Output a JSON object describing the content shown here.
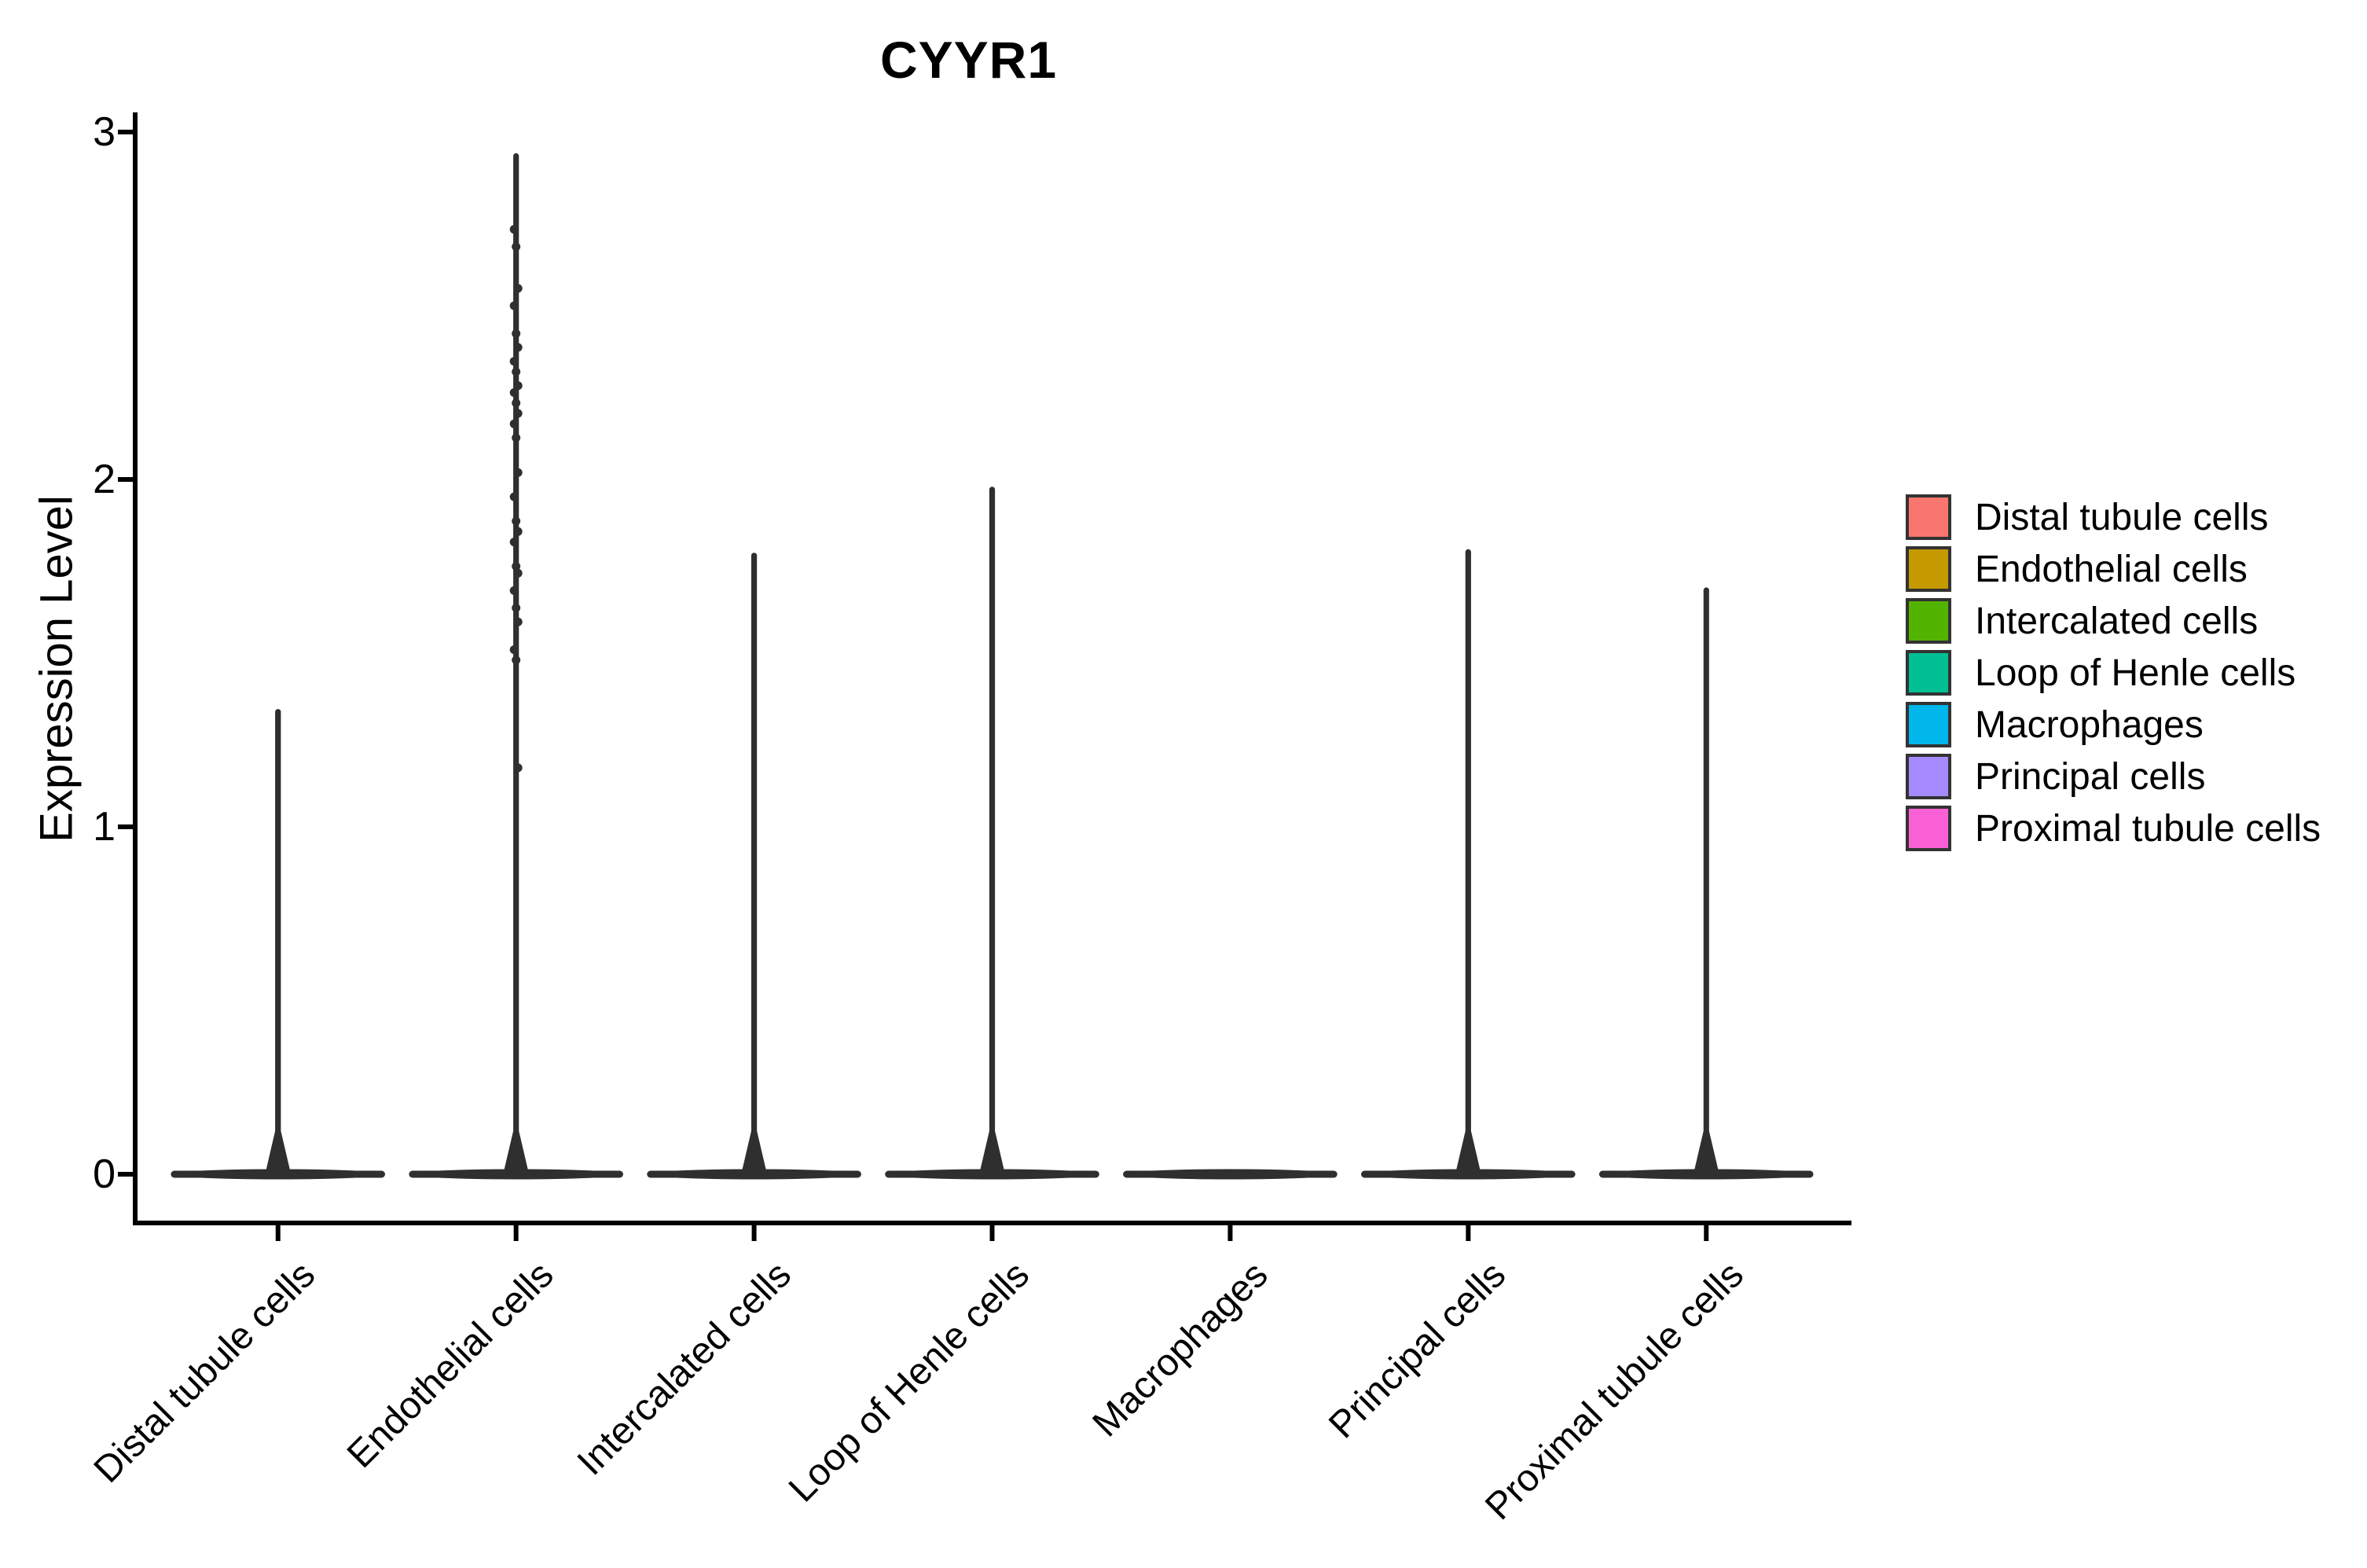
{
  "chart_data": {
    "type": "violin",
    "title": "CYYR1",
    "xlabel": "",
    "ylabel": "Expression Level",
    "ylim": [
      0,
      3
    ],
    "yticks": [
      0,
      1,
      2,
      3
    ],
    "grid": false,
    "legend_position": "right",
    "categories": [
      "Distal tubule cells",
      "Endothelial cells",
      "Intercalated cells",
      "Loop of Henle cells",
      "Macrophages",
      "Principal cells",
      "Proximal tubule cells"
    ],
    "colors": {
      "axis": "#000000",
      "text": "#000000",
      "violin_render_color": "#2f2f2f",
      "legend_border": "#333333"
    },
    "series": [
      {
        "name": "Distal tubule cells",
        "color": "#F8766D",
        "baseline_value": 0,
        "max_expression": 1.34,
        "points": []
      },
      {
        "name": "Endothelial cells",
        "color": "#C49A00",
        "baseline_value": 0,
        "max_expression": 2.94,
        "points": [
          2.72,
          2.67,
          2.55,
          2.5,
          2.42,
          2.38,
          2.34,
          2.31,
          2.27,
          2.25,
          2.22,
          2.19,
          2.16,
          2.12,
          2.02,
          1.95,
          1.88,
          1.85,
          1.82,
          1.75,
          1.73,
          1.68,
          1.63,
          1.59,
          1.51,
          1.48,
          1.17
        ]
      },
      {
        "name": "Intercalated cells",
        "color": "#53B400",
        "baseline_value": 0,
        "max_expression": 1.79,
        "points": []
      },
      {
        "name": "Loop of Henle cells",
        "color": "#00C094",
        "baseline_value": 0,
        "max_expression": 1.98,
        "points": []
      },
      {
        "name": "Macrophages",
        "color": "#00B6EB",
        "baseline_value": 0,
        "max_expression": 0,
        "points": []
      },
      {
        "name": "Principal cells",
        "color": "#A58AFF",
        "baseline_value": 0,
        "max_expression": 1.8,
        "points": []
      },
      {
        "name": "Proximal tubule cells",
        "color": "#FB61D7",
        "baseline_value": 0,
        "max_expression": 1.69,
        "points": []
      }
    ]
  }
}
